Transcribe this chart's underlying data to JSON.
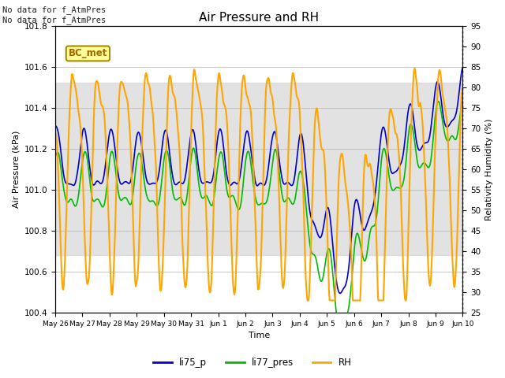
{
  "title": "Air Pressure and RH",
  "xlabel": "Time",
  "ylabel_left": "Air Pressure (kPa)",
  "ylabel_right": "Relativity Humidity (%)",
  "ylim_left": [
    100.4,
    101.8
  ],
  "ylim_right": [
    25,
    95
  ],
  "yticks_left": [
    100.4,
    100.6,
    100.8,
    101.0,
    101.2,
    101.4,
    101.6,
    101.8
  ],
  "yticks_right": [
    25,
    30,
    35,
    40,
    45,
    50,
    55,
    60,
    65,
    70,
    75,
    80,
    85,
    90,
    95
  ],
  "annotation_text": "No data for f_AtmPres\nNo data for f_AtmPres",
  "box_label": "BC_met",
  "legend_labels": [
    "li75_p",
    "li77_pres",
    "RH"
  ],
  "colors": {
    "li75_p": "#0000cc",
    "li77_pres": "#00bb00",
    "RH": "#ffa500",
    "shading": "#d0d0d0",
    "box_bg": "#ffff99",
    "box_edge": "#aa8800"
  },
  "line_widths": {
    "li75_p": 1.2,
    "li77_pres": 1.2,
    "RH": 1.5
  },
  "shading_ylim": [
    100.68,
    101.52
  ],
  "x_tick_labels": [
    "May 26",
    "May 27",
    "May 28",
    "May 29",
    "May 30",
    "May 31",
    "Jun 1",
    "Jun 2",
    "Jun 3",
    "Jun 4",
    "Jun 5",
    "Jun 6",
    "Jun 7",
    "Jun 8",
    "Jun 9",
    "Jun 10"
  ],
  "background_color": "#ffffff",
  "grid_color": "#bbbbbb"
}
